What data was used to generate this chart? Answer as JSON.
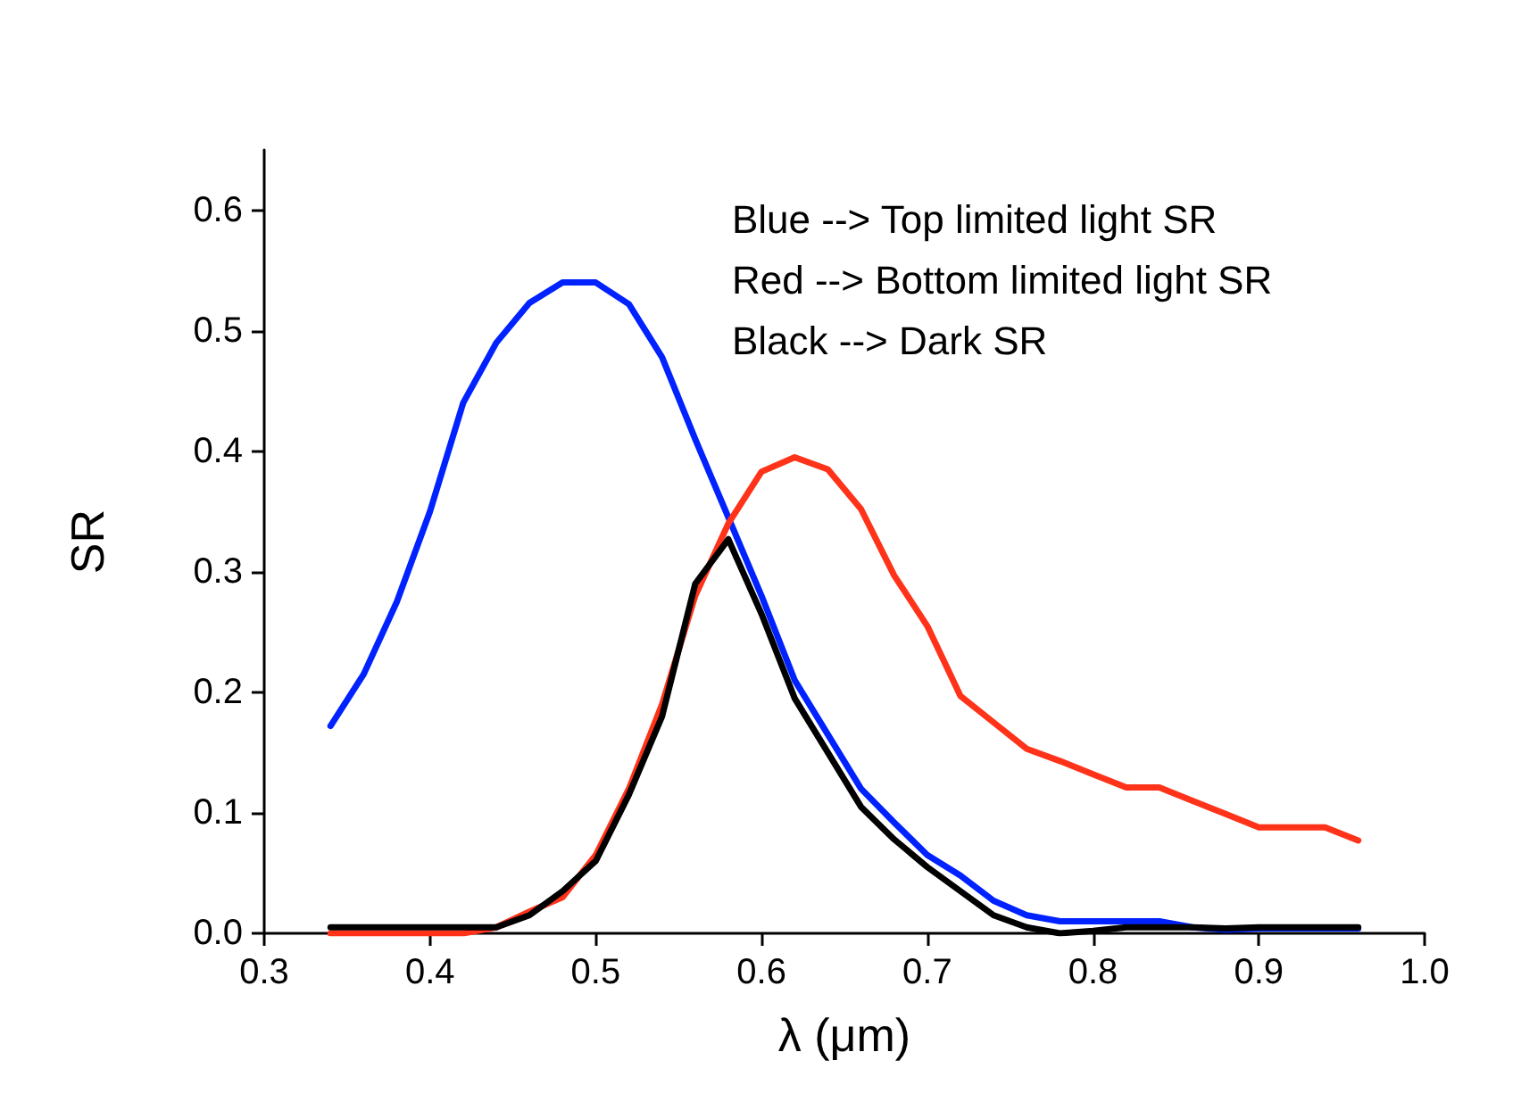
{
  "chart_data": {
    "type": "line",
    "xlabel": "λ (μm)",
    "ylabel": "SR",
    "x": [
      0.34,
      0.36,
      0.38,
      0.4,
      0.42,
      0.44,
      0.46,
      0.48,
      0.5,
      0.52,
      0.54,
      0.56,
      0.58,
      0.6,
      0.62,
      0.64,
      0.66,
      0.68,
      0.7,
      0.72,
      0.74,
      0.76,
      0.78,
      0.8,
      0.82,
      0.84,
      0.86,
      0.88,
      0.9,
      0.92,
      0.94,
      0.96
    ],
    "series": [
      {
        "color": "#0022ff",
        "values": [
          0.172,
          0.215,
          0.275,
          0.35,
          0.44,
          0.49,
          0.523,
          0.54,
          0.54,
          0.522,
          0.478,
          0.41,
          0.345,
          0.28,
          0.21,
          0.165,
          0.12,
          0.092,
          0.065,
          0.048,
          0.027,
          0.015,
          0.01,
          0.01,
          0.01,
          0.01,
          0.005,
          0.003,
          0.004,
          0.004,
          0.004,
          0.004
        ]
      },
      {
        "color": "#ff3319",
        "values": [
          0,
          0,
          0,
          0,
          0,
          0.005,
          0.018,
          0.03,
          0.065,
          0.12,
          0.19,
          0.28,
          0.34,
          0.383,
          0.395,
          0.385,
          0.352,
          0.297,
          0.255,
          0.197,
          0.175,
          0.153,
          0.143,
          0.132,
          0.121,
          0.121,
          0.11,
          0.099,
          0.088,
          0.088,
          0.088,
          0.077
        ]
      },
      {
        "color": "#000000",
        "values": [
          0.005,
          0.005,
          0.005,
          0.005,
          0.005,
          0.005,
          0.015,
          0.035,
          0.06,
          0.115,
          0.18,
          0.29,
          0.327,
          0.265,
          0.195,
          0.15,
          0.105,
          0.078,
          0.055,
          0.035,
          0.015,
          0.005,
          0,
          0.002,
          0.005,
          0.005,
          0.005,
          0.004,
          0.005,
          0.005,
          0.005,
          0.005
        ]
      }
    ],
    "xlim": [
      0.3,
      1.0
    ],
    "xticks": [
      {
        "value": 0.3,
        "label": "0.3"
      },
      {
        "value": 0.4,
        "label": "0.4"
      },
      {
        "value": 0.5,
        "label": "0.5"
      },
      {
        "value": 0.6,
        "label": "0.6"
      },
      {
        "value": 0.7,
        "label": "0.7"
      },
      {
        "value": 0.8,
        "label": "0.8"
      },
      {
        "value": 0.9,
        "label": "0.9"
      },
      {
        "value": 1.0,
        "label": "1.0"
      }
    ],
    "ylim": [
      0,
      0.65
    ],
    "yticks": [
      {
        "value": 0,
        "label": "0.0"
      },
      {
        "value": 0.1,
        "label": "0.1"
      },
      {
        "value": 0.2,
        "label": "0.2"
      },
      {
        "value": 0.3,
        "label": "0.3"
      },
      {
        "value": 0.4,
        "label": "0.4"
      },
      {
        "value": 0.5,
        "label": "0.5"
      },
      {
        "value": 0.6,
        "label": "0.6"
      }
    ],
    "grid": false,
    "marker": "none",
    "line_style": "solid",
    "annotations": [
      "Blue --> Top limited light SR",
      "Red --> Bottom limited light SR",
      "Black --> Dark SR"
    ]
  }
}
